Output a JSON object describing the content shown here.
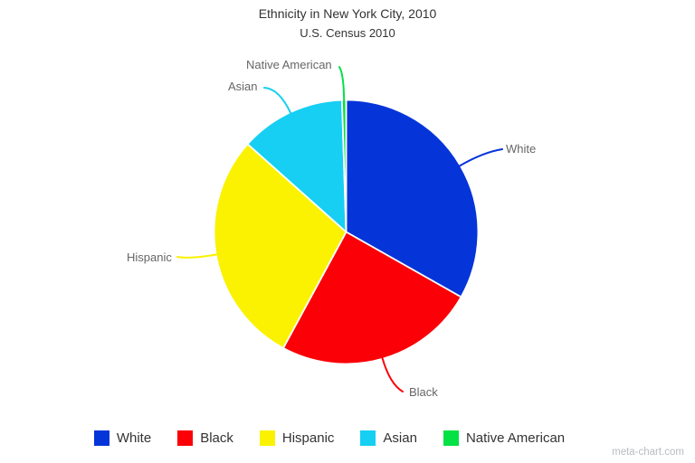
{
  "chart_data": {
    "type": "pie",
    "title": "Ethnicity in New York City, 2010",
    "subtitle": "U.S. Census 2010",
    "start_angle_deg": 0,
    "direction": "clockwise",
    "legend_position": "bottom",
    "slice_labels_shown": true,
    "slices": [
      {
        "label": "White",
        "value": 33.2,
        "color": "#0534d9"
      },
      {
        "label": "Black",
        "value": 24.7,
        "color": "#fb0006"
      },
      {
        "label": "Hispanic",
        "value": 28.7,
        "color": "#faf200"
      },
      {
        "label": "Asian",
        "value": 12.9,
        "color": "#16cff2"
      },
      {
        "label": "Native American",
        "value": 0.5,
        "color": "#04e144"
      }
    ]
  },
  "watermark": "meta-chart.com"
}
